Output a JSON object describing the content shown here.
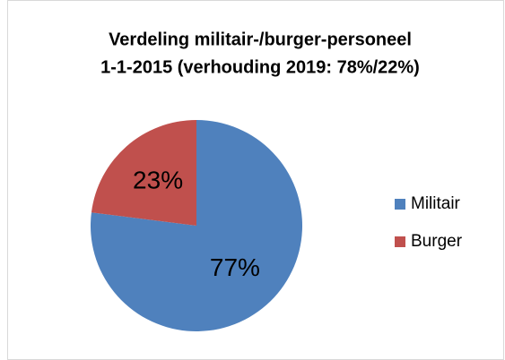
{
  "chart_data": {
    "type": "pie",
    "title": [
      "Verdeling militair-/burger-personeel",
      "1-1-2015 (verhouding 2019: 78%/22%)"
    ],
    "categories": [
      "Militair",
      "Burger"
    ],
    "values": [
      77,
      23
    ],
    "value_labels": [
      "77%",
      "23%"
    ],
    "colors": [
      "#4f81bd",
      "#c0504d"
    ],
    "legend": "right"
  }
}
